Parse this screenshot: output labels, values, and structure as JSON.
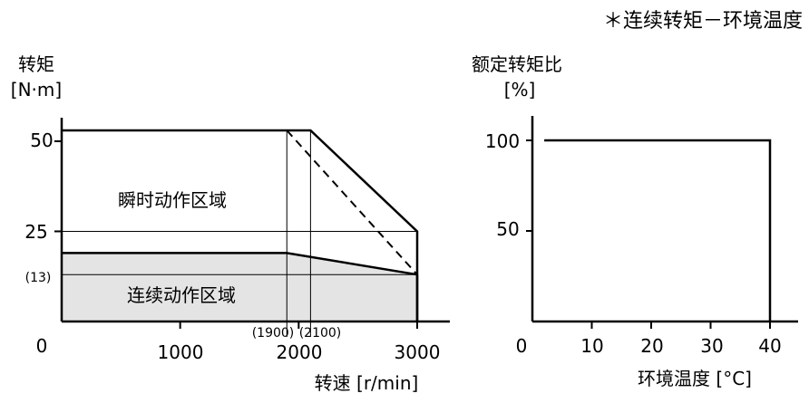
{
  "note": "＊连续转矩－环境温度",
  "chart_data": [
    {
      "type": "area",
      "ylabel_line1": "转矩",
      "ylabel_line2": "[N·m]",
      "xlabel": "转速 [r/min]",
      "xlim": [
        0,
        3000
      ],
      "ylim": [
        0,
        55
      ],
      "x_ticks": [
        "1000",
        "2000",
        "3000"
      ],
      "x_origin_label": "0",
      "y_ticks": [
        "50",
        "25"
      ],
      "y_ref_label": "(13)",
      "x_ref_labels": [
        "(1900)",
        "(2100)"
      ],
      "regions": [
        {
          "name": "瞬时动作区域",
          "points": [
            [
              0,
              53
            ],
            [
              2100,
              53
            ],
            [
              3000,
              25
            ],
            [
              3000,
              0
            ],
            [
              0,
              0
            ]
          ]
        },
        {
          "name": "连续动作区域",
          "points": [
            [
              0,
              19
            ],
            [
              1900,
              19
            ],
            [
              3000,
              13
            ],
            [
              3000,
              0
            ],
            [
              0,
              0
            ]
          ]
        }
      ],
      "dashed_line": [
        [
          1900,
          53
        ],
        [
          3000,
          13
        ]
      ],
      "ref_lines": {
        "horizontal": [
          25,
          13
        ],
        "vertical": [
          1900,
          2100
        ]
      }
    },
    {
      "type": "line",
      "ylabel_line1": "额定转矩比",
      "ylabel_line2": "[%]",
      "xlabel": "环境温度 [°C]",
      "xlim": [
        0,
        40
      ],
      "ylim": [
        0,
        110
      ],
      "x_ticks": [
        "0",
        "10",
        "20",
        "30",
        "40"
      ],
      "y_ticks": [
        "100",
        "50"
      ],
      "series": [
        {
          "points": [
            [
              2,
              100
            ],
            [
              40,
              100
            ]
          ]
        }
      ]
    }
  ]
}
